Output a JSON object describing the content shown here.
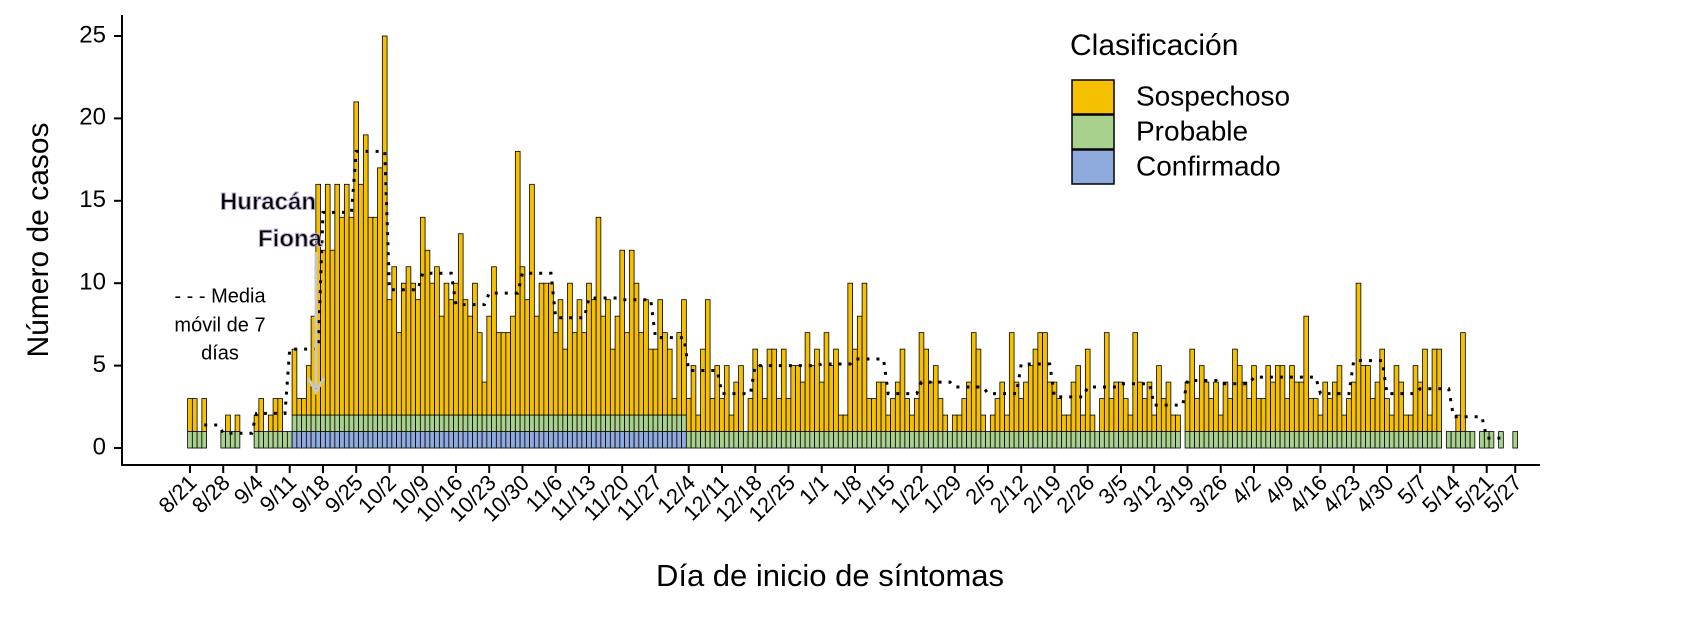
{
  "chart_data": {
    "type": "bar",
    "stacked": true,
    "x_label": "Día de inicio de síntomas",
    "y_label": "Número de casos",
    "legend_title": "Clasificación",
    "categories": [
      "8/21",
      null,
      null,
      null,
      null,
      null,
      null,
      "8/28",
      null,
      null,
      null,
      null,
      null,
      null,
      "9/4",
      null,
      null,
      null,
      null,
      null,
      null,
      "9/11",
      null,
      null,
      null,
      null,
      null,
      null,
      "9/18",
      null,
      null,
      null,
      null,
      null,
      null,
      "9/25",
      null,
      null,
      null,
      null,
      null,
      null,
      "10/2",
      null,
      null,
      null,
      null,
      null,
      null,
      "10/9",
      null,
      null,
      null,
      null,
      null,
      null,
      "10/16",
      null,
      null,
      null,
      null,
      null,
      null,
      "10/23",
      null,
      null,
      null,
      null,
      null,
      null,
      "10/30",
      null,
      null,
      null,
      null,
      null,
      null,
      "11/6",
      null,
      null,
      null,
      null,
      null,
      null,
      "11/13",
      null,
      null,
      null,
      null,
      null,
      null,
      "11/20",
      null,
      null,
      null,
      null,
      null,
      null,
      "11/27",
      null,
      null,
      null,
      null,
      null,
      null,
      "12/4",
      null,
      null,
      null,
      null,
      null,
      null,
      "12/11",
      null,
      null,
      null,
      null,
      null,
      null,
      "12/18",
      null,
      null,
      null,
      null,
      null,
      null,
      "12/25",
      null,
      null,
      null,
      null,
      null,
      null,
      "1/1",
      null,
      null,
      null,
      null,
      null,
      null,
      "1/8",
      null,
      null,
      null,
      null,
      null,
      null,
      "1/15",
      null,
      null,
      null,
      null,
      null,
      null,
      "1/22",
      null,
      null,
      null,
      null,
      null,
      null,
      "1/29",
      null,
      null,
      null,
      null,
      null,
      null,
      "2/5",
      null,
      null,
      null,
      null,
      null,
      null,
      "2/12",
      null,
      null,
      null,
      null,
      null,
      null,
      "2/19",
      null,
      null,
      null,
      null,
      null,
      null,
      "2/26",
      null,
      null,
      null,
      null,
      null,
      null,
      "3/5",
      null,
      null,
      null,
      null,
      null,
      null,
      "3/12",
      null,
      null,
      null,
      null,
      null,
      null,
      "3/19",
      null,
      null,
      null,
      null,
      null,
      null,
      "3/26",
      null,
      null,
      null,
      null,
      null,
      null,
      "4/2",
      null,
      null,
      null,
      null,
      null,
      null,
      "4/9",
      null,
      null,
      null,
      null,
      null,
      null,
      "4/16",
      null,
      null,
      null,
      null,
      null,
      null,
      "4/23",
      null,
      null,
      null,
      null,
      null,
      null,
      "4/30",
      null,
      null,
      null,
      null,
      null,
      null,
      "5/7",
      null,
      null,
      null,
      null,
      null,
      null,
      "5/14",
      null,
      null,
      null,
      null,
      null,
      null,
      "5/21",
      null,
      null,
      null,
      null,
      null,
      "5/27"
    ],
    "series": [
      {
        "name": "Sospechoso",
        "color": "#f5c000",
        "values": [
          2,
          2,
          0,
          2,
          0,
          0,
          0,
          0,
          1,
          0,
          1,
          0,
          0,
          0,
          1,
          2,
          0,
          1,
          2,
          2,
          0,
          0,
          4,
          1,
          1,
          3,
          6,
          14,
          10,
          14,
          10,
          14,
          12,
          14,
          12,
          19,
          14,
          17,
          12,
          12,
          15,
          23,
          7,
          9,
          5,
          8,
          9,
          8,
          7,
          12,
          10,
          8,
          9,
          6,
          8,
          7,
          8,
          11,
          7,
          6,
          8,
          5,
          2,
          6,
          9,
          5,
          5,
          5,
          6,
          16,
          9,
          7,
          14,
          6,
          8,
          8,
          8,
          5,
          7,
          4,
          8,
          5,
          7,
          5,
          8,
          7,
          12,
          6,
          7,
          4,
          6,
          10,
          5,
          10,
          8,
          5,
          7,
          4,
          4,
          7,
          5,
          4,
          1,
          5,
          7,
          2,
          4,
          1,
          5,
          8,
          2,
          4,
          2,
          4,
          1,
          3,
          4,
          0,
          2,
          5,
          4,
          2,
          5,
          5,
          2,
          5,
          2,
          4,
          4,
          3,
          6,
          4,
          5,
          3,
          6,
          4,
          5,
          1,
          1,
          9,
          5,
          7,
          9,
          2,
          2,
          3,
          3,
          1,
          2,
          3,
          5,
          2,
          1,
          2,
          6,
          5,
          3,
          4,
          2,
          1,
          0,
          1,
          1,
          2,
          3,
          6,
          5,
          1,
          0,
          1,
          2,
          3,
          1,
          6,
          3,
          2,
          3,
          4,
          5,
          6,
          6,
          3,
          3,
          2,
          1,
          1,
          3,
          4,
          1,
          5,
          1,
          0,
          2,
          6,
          2,
          3,
          3,
          2,
          1,
          6,
          3,
          2,
          3,
          1,
          4,
          2,
          3,
          1,
          1,
          0,
          3,
          5,
          2,
          4,
          3,
          2,
          3,
          1,
          3,
          2,
          5,
          4,
          3,
          2,
          4,
          2,
          2,
          4,
          3,
          4,
          4,
          2,
          4,
          3,
          3,
          7,
          2,
          2,
          1,
          3,
          2,
          3,
          4,
          1,
          2,
          3,
          9,
          4,
          4,
          2,
          3,
          5,
          2,
          1,
          4,
          3,
          1,
          1,
          4,
          3,
          5,
          1,
          5,
          5,
          0,
          0,
          0,
          1,
          6,
          0,
          0,
          0,
          0,
          0,
          0,
          0,
          0,
          0,
          0,
          0
        ]
      },
      {
        "name": "Probable",
        "color": "#a9d18e",
        "values": [
          1,
          1,
          1,
          1,
          0,
          0,
          0,
          1,
          1,
          1,
          1,
          0,
          0,
          0,
          1,
          1,
          1,
          1,
          1,
          1,
          1,
          1,
          1,
          1,
          1,
          1,
          1,
          1,
          1,
          1,
          1,
          1,
          1,
          1,
          1,
          1,
          1,
          1,
          1,
          1,
          1,
          1,
          1,
          1,
          1,
          1,
          1,
          1,
          1,
          1,
          1,
          1,
          1,
          1,
          1,
          1,
          1,
          1,
          1,
          1,
          1,
          1,
          1,
          1,
          1,
          1,
          1,
          1,
          1,
          1,
          1,
          1,
          1,
          1,
          1,
          1,
          1,
          1,
          1,
          1,
          1,
          1,
          1,
          1,
          1,
          1,
          1,
          1,
          1,
          1,
          1,
          1,
          1,
          1,
          1,
          1,
          1,
          1,
          1,
          1,
          1,
          1,
          1,
          1,
          1,
          1,
          1,
          1,
          1,
          1,
          1,
          1,
          1,
          1,
          1,
          1,
          1,
          1,
          1,
          1,
          1,
          1,
          1,
          1,
          1,
          1,
          1,
          1,
          1,
          1,
          1,
          1,
          1,
          1,
          1,
          1,
          1,
          1,
          1,
          1,
          1,
          1,
          1,
          1,
          1,
          1,
          1,
          1,
          1,
          1,
          1,
          1,
          1,
          1,
          1,
          1,
          1,
          1,
          1,
          1,
          1,
          1,
          1,
          1,
          1,
          1,
          1,
          1,
          1,
          1,
          1,
          1,
          1,
          1,
          1,
          1,
          1,
          1,
          1,
          1,
          1,
          1,
          1,
          1,
          1,
          1,
          1,
          1,
          1,
          1,
          1,
          1,
          1,
          1,
          1,
          1,
          1,
          1,
          1,
          1,
          1,
          1,
          1,
          1,
          1,
          1,
          1,
          1,
          1,
          0,
          1,
          1,
          1,
          1,
          1,
          1,
          1,
          1,
          1,
          1,
          1,
          1,
          1,
          1,
          1,
          1,
          1,
          1,
          1,
          1,
          1,
          1,
          1,
          1,
          1,
          1,
          1,
          1,
          1,
          1,
          1,
          1,
          1,
          1,
          1,
          1,
          1,
          1,
          1,
          1,
          1,
          1,
          1,
          1,
          1,
          1,
          1,
          1,
          1,
          1,
          1,
          1,
          1,
          1,
          0,
          1,
          1,
          1,
          1,
          1,
          1,
          0,
          1,
          1,
          1,
          0,
          1,
          0,
          0,
          1
        ]
      },
      {
        "name": "Confirmado",
        "color": "#8faadc",
        "values": [
          0,
          0,
          0,
          0,
          0,
          0,
          0,
          0,
          0,
          0,
          0,
          0,
          0,
          0,
          0,
          0,
          0,
          0,
          0,
          0,
          0,
          0,
          1,
          1,
          1,
          1,
          1,
          1,
          1,
          1,
          1,
          1,
          1,
          1,
          1,
          1,
          1,
          1,
          1,
          1,
          1,
          1,
          1,
          1,
          1,
          1,
          1,
          1,
          1,
          1,
          1,
          1,
          1,
          1,
          1,
          1,
          1,
          1,
          1,
          1,
          1,
          1,
          1,
          1,
          1,
          1,
          1,
          1,
          1,
          1,
          1,
          1,
          1,
          1,
          1,
          1,
          1,
          1,
          1,
          1,
          1,
          1,
          1,
          1,
          1,
          1,
          1,
          1,
          1,
          1,
          1,
          1,
          1,
          1,
          1,
          1,
          1,
          1,
          1,
          1,
          1,
          1,
          1,
          1,
          1,
          0,
          0,
          0,
          0,
          0,
          0,
          0,
          0,
          0,
          0,
          0,
          0,
          0,
          0,
          0,
          0,
          0,
          0,
          0,
          0,
          0,
          0,
          0,
          0,
          0,
          0,
          0,
          0,
          0,
          0,
          0,
          0,
          0,
          0,
          0,
          0,
          0,
          0,
          0,
          0,
          0,
          0,
          0,
          0,
          0,
          0,
          0,
          0,
          0,
          0,
          0,
          0,
          0,
          0,
          0,
          0,
          0,
          0,
          0,
          0,
          0,
          0,
          0,
          0,
          0,
          0,
          0,
          0,
          0,
          0,
          0,
          0,
          0,
          0,
          0,
          0,
          0,
          0,
          0,
          0,
          0,
          0,
          0,
          0,
          0,
          0,
          0,
          0,
          0,
          0,
          0,
          0,
          0,
          0,
          0,
          0,
          0,
          0,
          0,
          0,
          0,
          0,
          0,
          0,
          0,
          0,
          0,
          0,
          0,
          0,
          0,
          0,
          0,
          0,
          0,
          0,
          0,
          0,
          0,
          0,
          0,
          0,
          0,
          0,
          0,
          0,
          0,
          0,
          0,
          0,
          0,
          0,
          0,
          0,
          0,
          0,
          0,
          0,
          0,
          0,
          0,
          0,
          0,
          0,
          0,
          0,
          0,
          0,
          0,
          0,
          0,
          0,
          0,
          0,
          0,
          0,
          0,
          0,
          0,
          0,
          0,
          0,
          0,
          0,
          0,
          0,
          0,
          0,
          0,
          0,
          0,
          0,
          0,
          0,
          0
        ]
      }
    ],
    "moving_average": {
      "color": "#000000",
      "values": [
        null,
        null,
        null,
        1.4,
        1.4,
        1.4,
        1.4,
        0.9,
        0.9,
        0.9,
        0.9,
        0.9,
        0.9,
        0.9,
        2.1,
        2.1,
        2.1,
        2.1,
        2.1,
        2.1,
        2.1,
        6,
        6,
        6,
        6,
        6,
        6,
        6,
        14.3,
        14.3,
        14.3,
        14.3,
        14.3,
        14.3,
        14.3,
        18,
        18,
        18,
        18,
        18,
        18,
        18,
        9.6,
        9.6,
        9.6,
        9.6,
        9.6,
        9.6,
        9.6,
        10.6,
        10.6,
        10.6,
        10.6,
        10.6,
        10.6,
        10.6,
        8.7,
        8.7,
        8.7,
        8.7,
        8.7,
        8.7,
        8.7,
        9.4,
        9.4,
        9.4,
        9.4,
        9.4,
        9.4,
        9.4,
        10.6,
        10.6,
        10.6,
        10.6,
        10.6,
        10.6,
        10.6,
        7.9,
        7.9,
        7.9,
        7.9,
        7.9,
        7.9,
        7.9,
        9.1,
        9.1,
        9.1,
        9.1,
        9.1,
        9.1,
        9.1,
        9,
        9,
        9,
        9,
        9,
        9,
        9,
        6.7,
        6.7,
        6.7,
        6.7,
        6.7,
        6.7,
        6.7,
        4.7,
        4.7,
        4.7,
        4.7,
        4.7,
        4.7,
        4.7,
        3.3,
        3.3,
        3.3,
        3.3,
        3.3,
        3.3,
        3.3,
        5,
        5,
        5,
        5,
        5,
        5,
        5,
        5,
        5,
        5,
        5,
        5,
        5,
        5,
        5.1,
        5.1,
        5.1,
        5.1,
        5.1,
        5.1,
        5.1,
        5.4,
        5.4,
        5.4,
        5.4,
        5.4,
        5.4,
        5.4,
        3.3,
        3.3,
        3.3,
        3.3,
        3.3,
        3.3,
        3.3,
        4,
        4,
        4,
        4,
        4,
        4,
        4,
        3.7,
        3.7,
        3.7,
        3.7,
        3.7,
        3.7,
        3.7,
        3.3,
        3.3,
        3.3,
        3.3,
        3.3,
        3.3,
        3.3,
        5.1,
        5.1,
        5.1,
        5.1,
        5.1,
        5.1,
        5.1,
        3.1,
        3.1,
        3.1,
        3.1,
        3.1,
        3.1,
        3.1,
        3.7,
        3.7,
        3.7,
        3.7,
        3.7,
        3.7,
        3.7,
        3.9,
        3.9,
        3.9,
        3.9,
        3.9,
        3.9,
        3.9,
        2.6,
        2.6,
        2.6,
        2.6,
        2.6,
        2.6,
        2.6,
        4.1,
        4.1,
        4.1,
        4.1,
        4.1,
        4.1,
        4.1,
        3.9,
        3.9,
        3.9,
        3.9,
        3.9,
        3.9,
        3.9,
        4.3,
        4.3,
        4.3,
        4.3,
        4.3,
        4.3,
        4.3,
        4.3,
        4.3,
        4.3,
        4.3,
        4.3,
        4.3,
        4.3,
        3.3,
        3.3,
        3.3,
        3.3,
        3.3,
        3.3,
        3.3,
        5.3,
        5.3,
        5.3,
        5.3,
        5.3,
        5.3,
        5.3,
        3.3,
        3.3,
        3.3,
        3.3,
        3.3,
        3.3,
        3.3,
        3.6,
        3.6,
        3.6,
        3.6,
        3.6,
        3.6,
        3.6,
        1.9,
        1.9,
        1.9,
        1.9,
        1.9,
        1.9,
        1.9,
        0.6,
        0.6,
        0.6,
        0.6,
        null,
        null,
        null
      ]
    },
    "annotations": {
      "hurricane": [
        "Huracán",
        "Fiona"
      ],
      "moving_average_note": [
        "- - -  Media",
        "móvil de 7",
        "días"
      ]
    },
    "ylim": [
      -1,
      26
    ],
    "yticks": [
      0,
      5,
      10,
      15,
      20,
      25
    ],
    "grid": false,
    "legend_position": "upper right"
  }
}
